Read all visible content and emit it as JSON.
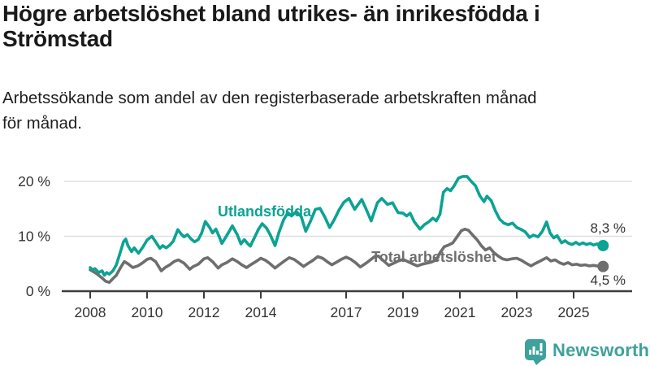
{
  "header": {
    "title_lines": [
      "Högre arbetslöshet bland utrikes- än inrikesfödda i",
      "Strömstad"
    ],
    "subtitle_lines": [
      "Arbetssökande som andel av den registerbaserade arbetskraften månad",
      "för månad."
    ]
  },
  "colors": {
    "accent_teal": "#0ca294",
    "series_gray": "#6e6e6e",
    "grid": "#e0e0e0",
    "axis": "#3c3c3c",
    "axis_text": "#333333",
    "value_text": "#333333"
  },
  "footer": {
    "brand": "Newsworthy",
    "brand_color": "#3ea19b"
  },
  "chart_data": {
    "type": "line",
    "title": "Högre arbetslöshet bland utrikes- än inrikesfödda i Strömstad",
    "subtitle": "Arbetssökande som andel av den registerbaserade arbetskraften månad för månad.",
    "x_axis": {
      "unit": "year",
      "ticks": [
        2008,
        2010,
        2012,
        2014,
        2017,
        2019,
        2021,
        2023,
        2025
      ],
      "range": [
        2008,
        2026
      ]
    },
    "y_axis": {
      "unit": "%",
      "ticks": [
        {
          "value": 0,
          "label": "0 %"
        },
        {
          "value": 10,
          "label": "10 %"
        },
        {
          "value": 20,
          "label": "20 %"
        }
      ],
      "range": [
        0,
        22
      ]
    },
    "grid": "horizontal",
    "legend_position": "inline-labels",
    "series": [
      {
        "name": "Total arbetslöshet",
        "color": "#6e6e6e",
        "end_label": "4,5 %",
        "end_value": 4.5,
        "points": [
          [
            2008.0,
            3.9
          ],
          [
            2008.13,
            3.5
          ],
          [
            2008.25,
            3.1
          ],
          [
            2008.42,
            2.4
          ],
          [
            2008.55,
            1.8
          ],
          [
            2008.67,
            1.6
          ],
          [
            2008.8,
            2.3
          ],
          [
            2008.92,
            2.9
          ],
          [
            2009.08,
            4.4
          ],
          [
            2009.2,
            5.4
          ],
          [
            2009.33,
            5.0
          ],
          [
            2009.5,
            4.3
          ],
          [
            2009.67,
            4.6
          ],
          [
            2009.83,
            5.1
          ],
          [
            2010.0,
            5.8
          ],
          [
            2010.13,
            6.0
          ],
          [
            2010.3,
            5.4
          ],
          [
            2010.5,
            3.7
          ],
          [
            2010.63,
            4.3
          ],
          [
            2010.8,
            4.8
          ],
          [
            2010.95,
            5.4
          ],
          [
            2011.1,
            5.7
          ],
          [
            2011.3,
            5.1
          ],
          [
            2011.5,
            4.0
          ],
          [
            2011.63,
            4.5
          ],
          [
            2011.8,
            4.9
          ],
          [
            2012.0,
            5.9
          ],
          [
            2012.13,
            6.1
          ],
          [
            2012.3,
            5.4
          ],
          [
            2012.5,
            4.2
          ],
          [
            2012.63,
            4.8
          ],
          [
            2012.8,
            5.2
          ],
          [
            2013.0,
            5.9
          ],
          [
            2013.17,
            5.4
          ],
          [
            2013.33,
            4.8
          ],
          [
            2013.5,
            4.3
          ],
          [
            2013.67,
            4.9
          ],
          [
            2013.83,
            5.4
          ],
          [
            2014.0,
            6.0
          ],
          [
            2014.17,
            5.6
          ],
          [
            2014.33,
            5.0
          ],
          [
            2014.5,
            4.2
          ],
          [
            2014.67,
            4.9
          ],
          [
            2014.83,
            5.5
          ],
          [
            2015.0,
            6.1
          ],
          [
            2015.17,
            5.8
          ],
          [
            2015.33,
            5.2
          ],
          [
            2015.5,
            4.5
          ],
          [
            2015.67,
            5.1
          ],
          [
            2015.83,
            5.6
          ],
          [
            2016.0,
            6.3
          ],
          [
            2016.17,
            6.0
          ],
          [
            2016.33,
            5.4
          ],
          [
            2016.5,
            4.8
          ],
          [
            2016.67,
            5.3
          ],
          [
            2016.83,
            5.8
          ],
          [
            2017.0,
            6.2
          ],
          [
            2017.17,
            5.8
          ],
          [
            2017.33,
            5.2
          ],
          [
            2017.5,
            4.4
          ],
          [
            2017.67,
            5.0
          ],
          [
            2017.83,
            5.6
          ],
          [
            2018.0,
            6.3
          ],
          [
            2018.13,
            6.4
          ],
          [
            2018.3,
            5.6
          ],
          [
            2018.5,
            4.7
          ],
          [
            2018.67,
            5.1
          ],
          [
            2018.83,
            5.5
          ],
          [
            2019.0,
            5.8
          ],
          [
            2019.17,
            5.4
          ],
          [
            2019.33,
            5.0
          ],
          [
            2019.5,
            4.6
          ],
          [
            2019.67,
            4.9
          ],
          [
            2019.83,
            5.1
          ],
          [
            2020.0,
            5.3
          ],
          [
            2020.17,
            5.7
          ],
          [
            2020.3,
            7.0
          ],
          [
            2020.45,
            8.1
          ],
          [
            2020.6,
            8.4
          ],
          [
            2020.75,
            8.8
          ],
          [
            2020.9,
            9.9
          ],
          [
            2021.05,
            11.0
          ],
          [
            2021.17,
            11.3
          ],
          [
            2021.3,
            11.1
          ],
          [
            2021.45,
            10.2
          ],
          [
            2021.6,
            9.4
          ],
          [
            2021.75,
            8.3
          ],
          [
            2021.9,
            7.5
          ],
          [
            2022.05,
            7.9
          ],
          [
            2022.2,
            7.0
          ],
          [
            2022.35,
            6.4
          ],
          [
            2022.5,
            5.9
          ],
          [
            2022.65,
            5.7
          ],
          [
            2022.83,
            5.9
          ],
          [
            2023.0,
            6.0
          ],
          [
            2023.17,
            5.6
          ],
          [
            2023.33,
            5.1
          ],
          [
            2023.5,
            4.6
          ],
          [
            2023.67,
            5.1
          ],
          [
            2023.83,
            5.5
          ],
          [
            2024.05,
            6.1
          ],
          [
            2024.2,
            5.5
          ],
          [
            2024.35,
            5.7
          ],
          [
            2024.5,
            5.2
          ],
          [
            2024.65,
            4.9
          ],
          [
            2024.8,
            5.2
          ],
          [
            2024.95,
            4.8
          ],
          [
            2025.1,
            4.9
          ],
          [
            2025.25,
            4.7
          ],
          [
            2025.4,
            4.8
          ],
          [
            2025.55,
            4.6
          ],
          [
            2025.7,
            4.7
          ],
          [
            2025.95,
            4.5
          ]
        ]
      },
      {
        "name": "Utlandsfödda",
        "color": "#0ca294",
        "end_label": "8,3 %",
        "end_value": 8.3,
        "points": [
          [
            2008.0,
            4.3
          ],
          [
            2008.08,
            3.9
          ],
          [
            2008.17,
            4.1
          ],
          [
            2008.3,
            3.4
          ],
          [
            2008.42,
            3.7
          ],
          [
            2008.5,
            2.9
          ],
          [
            2008.58,
            3.4
          ],
          [
            2008.67,
            3.1
          ],
          [
            2008.8,
            3.7
          ],
          [
            2008.92,
            4.8
          ],
          [
            2009.0,
            6.1
          ],
          [
            2009.17,
            9.0
          ],
          [
            2009.25,
            9.5
          ],
          [
            2009.33,
            8.3
          ],
          [
            2009.45,
            7.2
          ],
          [
            2009.55,
            7.9
          ],
          [
            2009.7,
            6.9
          ],
          [
            2009.85,
            8.0
          ],
          [
            2010.0,
            9.3
          ],
          [
            2010.17,
            10.0
          ],
          [
            2010.3,
            9.0
          ],
          [
            2010.45,
            7.8
          ],
          [
            2010.55,
            8.3
          ],
          [
            2010.67,
            7.9
          ],
          [
            2010.8,
            8.4
          ],
          [
            2010.92,
            9.1
          ],
          [
            2011.08,
            11.2
          ],
          [
            2011.2,
            10.4
          ],
          [
            2011.3,
            9.9
          ],
          [
            2011.42,
            10.3
          ],
          [
            2011.55,
            9.5
          ],
          [
            2011.67,
            9.0
          ],
          [
            2011.8,
            9.4
          ],
          [
            2011.92,
            10.6
          ],
          [
            2012.05,
            12.7
          ],
          [
            2012.2,
            11.6
          ],
          [
            2012.3,
            10.6
          ],
          [
            2012.42,
            11.3
          ],
          [
            2012.55,
            9.8
          ],
          [
            2012.63,
            8.7
          ],
          [
            2012.75,
            9.7
          ],
          [
            2012.9,
            11.0
          ],
          [
            2013.0,
            11.9
          ],
          [
            2013.17,
            10.3
          ],
          [
            2013.3,
            8.6
          ],
          [
            2013.42,
            9.4
          ],
          [
            2013.55,
            8.6
          ],
          [
            2013.63,
            8.2
          ],
          [
            2013.8,
            10.0
          ],
          [
            2013.92,
            11.3
          ],
          [
            2014.05,
            12.3
          ],
          [
            2014.2,
            11.5
          ],
          [
            2014.33,
            10.3
          ],
          [
            2014.5,
            8.3
          ],
          [
            2014.63,
            10.6
          ],
          [
            2014.8,
            13.0
          ],
          [
            2014.95,
            14.3
          ],
          [
            2015.08,
            13.7
          ],
          [
            2015.25,
            14.5
          ],
          [
            2015.42,
            13.6
          ],
          [
            2015.58,
            10.9
          ],
          [
            2015.75,
            12.8
          ],
          [
            2015.92,
            14.9
          ],
          [
            2016.08,
            15.1
          ],
          [
            2016.25,
            13.5
          ],
          [
            2016.42,
            11.6
          ],
          [
            2016.58,
            13.0
          ],
          [
            2016.75,
            14.8
          ],
          [
            2016.92,
            16.2
          ],
          [
            2017.1,
            16.9
          ],
          [
            2017.3,
            14.9
          ],
          [
            2017.55,
            16.7
          ],
          [
            2017.7,
            15.0
          ],
          [
            2017.88,
            12.8
          ],
          [
            2018.1,
            16.1
          ],
          [
            2018.25,
            16.9
          ],
          [
            2018.45,
            15.8
          ],
          [
            2018.63,
            16.1
          ],
          [
            2018.83,
            14.3
          ],
          [
            2019.0,
            14.2
          ],
          [
            2019.13,
            13.7
          ],
          [
            2019.25,
            14.2
          ],
          [
            2019.4,
            12.6
          ],
          [
            2019.6,
            11.3
          ],
          [
            2019.75,
            12.1
          ],
          [
            2019.9,
            12.6
          ],
          [
            2020.05,
            13.3
          ],
          [
            2020.17,
            12.8
          ],
          [
            2020.3,
            14.0
          ],
          [
            2020.42,
            18.0
          ],
          [
            2020.55,
            18.7
          ],
          [
            2020.67,
            18.3
          ],
          [
            2020.8,
            19.2
          ],
          [
            2020.95,
            20.6
          ],
          [
            2021.1,
            20.9
          ],
          [
            2021.25,
            20.9
          ],
          [
            2021.4,
            20.0
          ],
          [
            2021.55,
            19.2
          ],
          [
            2021.7,
            17.4
          ],
          [
            2021.85,
            16.3
          ],
          [
            2021.95,
            17.3
          ],
          [
            2022.1,
            16.5
          ],
          [
            2022.25,
            14.6
          ],
          [
            2022.4,
            13.1
          ],
          [
            2022.55,
            12.4
          ],
          [
            2022.7,
            12.1
          ],
          [
            2022.85,
            12.4
          ],
          [
            2023.0,
            11.6
          ],
          [
            2023.17,
            11.2
          ],
          [
            2023.3,
            10.8
          ],
          [
            2023.45,
            9.8
          ],
          [
            2023.58,
            10.2
          ],
          [
            2023.75,
            9.9
          ],
          [
            2023.9,
            10.9
          ],
          [
            2024.05,
            12.6
          ],
          [
            2024.17,
            10.6
          ],
          [
            2024.3,
            9.7
          ],
          [
            2024.42,
            10.1
          ],
          [
            2024.58,
            8.8
          ],
          [
            2024.7,
            9.2
          ],
          [
            2024.83,
            8.7
          ],
          [
            2024.95,
            8.5
          ],
          [
            2025.08,
            8.9
          ],
          [
            2025.2,
            8.5
          ],
          [
            2025.33,
            8.8
          ],
          [
            2025.45,
            8.5
          ],
          [
            2025.58,
            8.7
          ],
          [
            2025.7,
            8.4
          ],
          [
            2025.83,
            8.6
          ],
          [
            2025.95,
            8.3
          ]
        ]
      }
    ]
  }
}
